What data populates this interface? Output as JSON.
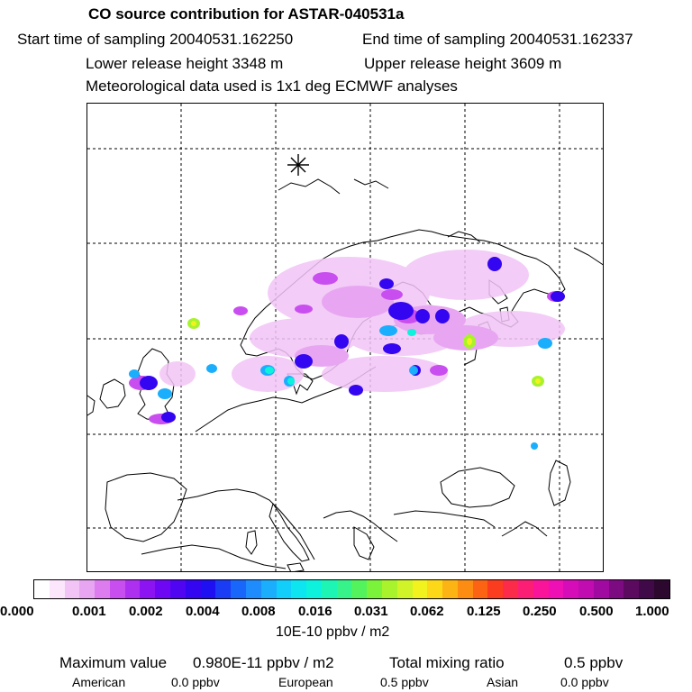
{
  "header": {
    "title": "CO  source contribution for ASTAR-040531a",
    "start_time": "Start time of sampling 20040531.162250",
    "end_time": "End time of sampling 20040531.162337",
    "lower_height": "Lower release height 3348 m",
    "upper_height": "Upper release height 3609 m",
    "met_data": "Meteorological data used is 1x1 deg ECMWF analyses"
  },
  "legend": {
    "ticks": [
      "0.000",
      "0.001",
      "0.002",
      "0.004",
      "0.008",
      "0.016",
      "0.031",
      "0.062",
      "0.125",
      "0.250",
      "0.500",
      "1.000"
    ],
    "unit": "10E-10 ppbv / m2",
    "colors": [
      "#ffffff",
      "#fce6fc",
      "#f2c4f6",
      "#e8a6f2",
      "#dc7cef",
      "#c94eef",
      "#ad2ff0",
      "#8d14f2",
      "#6e07f4",
      "#4f05f2",
      "#3405f0",
      "#1e10f2",
      "#1a3cf5",
      "#1966fb",
      "#1e8cfc",
      "#1aaefc",
      "#12cefa",
      "#0de6f0",
      "#0df2dc",
      "#1cf5b4",
      "#36f48a",
      "#52f35c",
      "#7af33a",
      "#a8f32c",
      "#d0f428",
      "#f2f21e",
      "#fcd818",
      "#fcb414",
      "#fc8c12",
      "#fc6414",
      "#fc3c1e",
      "#fc2b4a",
      "#fc1e74",
      "#fa149a",
      "#ee10b4",
      "#d60cb8",
      "#c00cb0",
      "#a00aa0",
      "#7c0a80",
      "#5c0a60",
      "#400a48",
      "#2c082e"
    ]
  },
  "summary": {
    "maximum_label": "Maximum value",
    "maximum_value": "0.980E-11 ppbv / m2",
    "total_label": "Total mixing ratio",
    "total_value": "0.5 ppbv",
    "american_label": "American",
    "american_value": "0.0 ppbv",
    "european_label": "European",
    "european_value": "0.5 ppbv",
    "asian_label": "Asian",
    "asian_value": "0.0 ppbv"
  },
  "map": {
    "release_marker": "release-point-star"
  }
}
